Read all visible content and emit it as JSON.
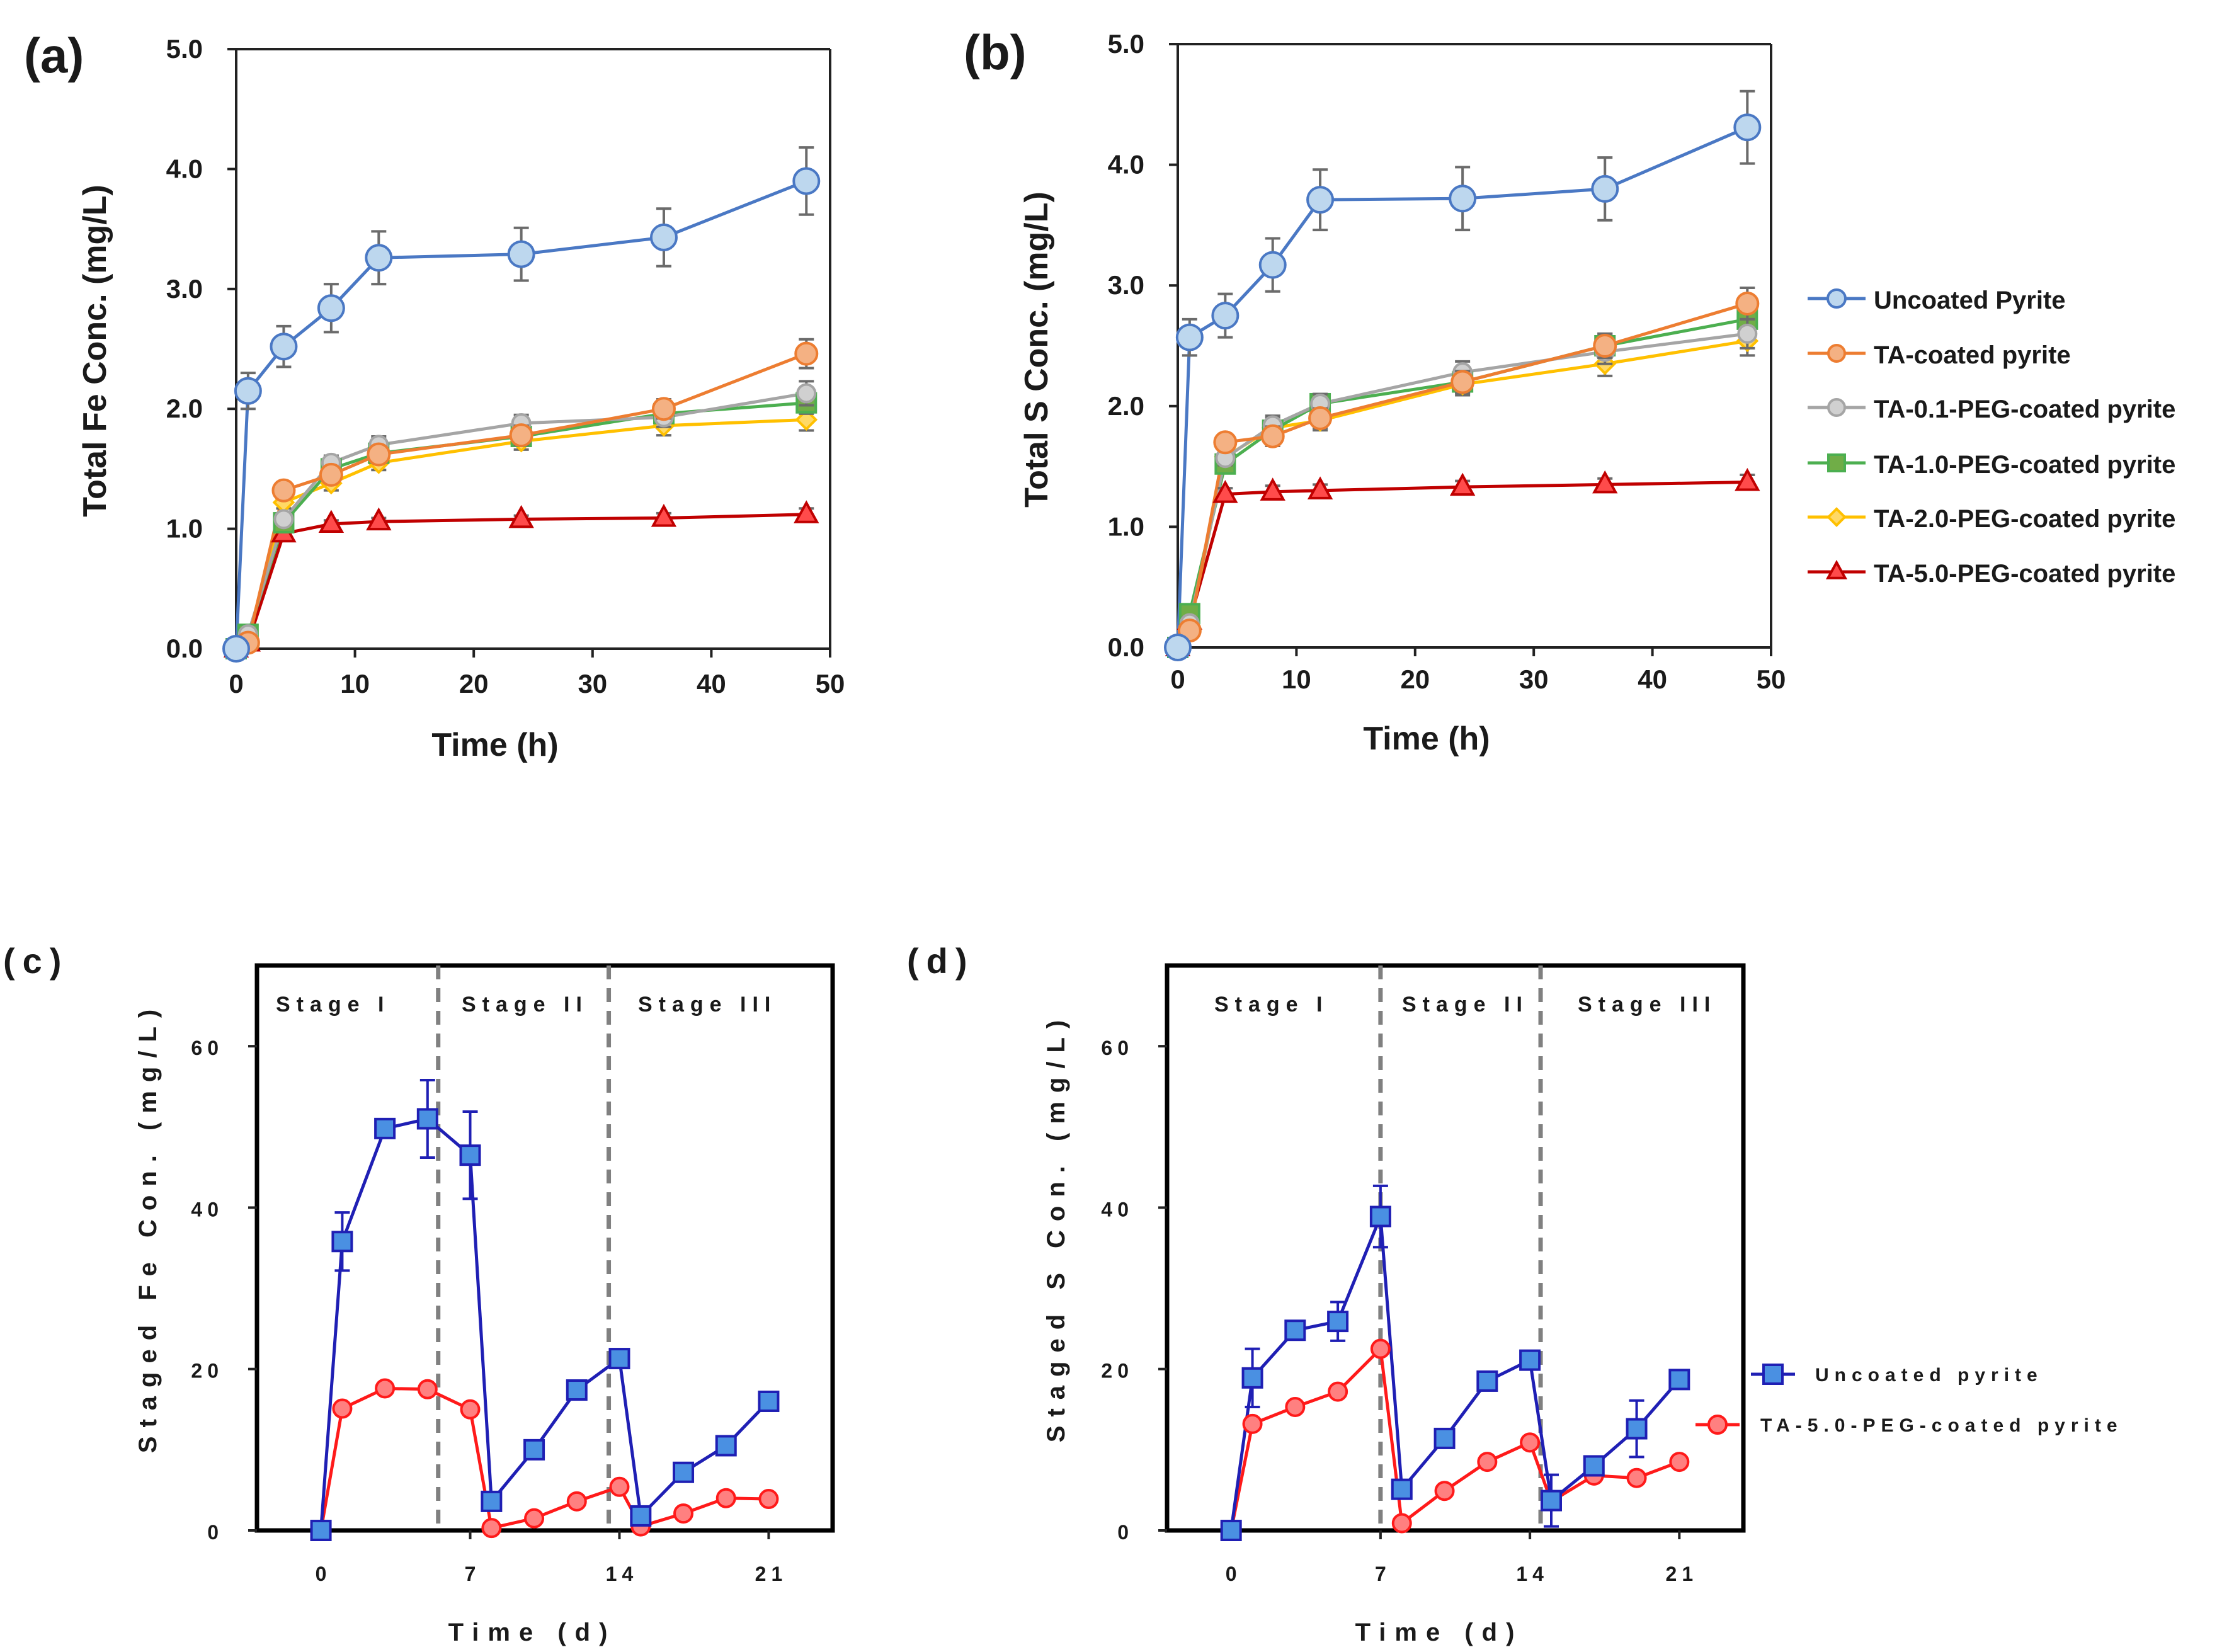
{
  "panels": {
    "a": "(a)",
    "b": "(b)",
    "c": "(c)",
    "d": "(d)"
  },
  "axes": {
    "a": {
      "ylabel": "Total Fe Conc. (mg/L)",
      "xlabel": "Time (h)",
      "yticks": [
        "0.0",
        "1.0",
        "2.0",
        "3.0",
        "4.0",
        "5.0"
      ],
      "xticks": [
        "0",
        "10",
        "20",
        "30",
        "40",
        "50"
      ]
    },
    "b": {
      "ylabel": "Total S Conc. (mg/L)",
      "xlabel": "Time (h)",
      "yticks": [
        "0.0",
        "1.0",
        "2.0",
        "3.0",
        "4.0",
        "5.0"
      ],
      "xticks": [
        "0",
        "10",
        "20",
        "30",
        "40",
        "50"
      ]
    },
    "c": {
      "ylabel": "Staged Fe Con. (mg/L)",
      "xlabel": "Time (d)",
      "yticks": [
        "0",
        "20",
        "40",
        "60"
      ],
      "xticks": [
        "0",
        "7",
        "14",
        "21"
      ]
    },
    "d": {
      "ylabel": "Staged S Con. (mg/L)",
      "xlabel": "Time (d)",
      "yticks": [
        "0",
        "20",
        "40",
        "60"
      ],
      "xticks": [
        "0",
        "7",
        "14",
        "21"
      ]
    }
  },
  "legend_top": [
    "Uncoated Pyrite",
    "TA-coated pyrite",
    "TA-0.1-PEG-coated pyrite",
    "TA-1.0-PEG-coated pyrite",
    "TA-2.0-PEG-coated pyrite",
    "TA-5.0-PEG-coated pyrite"
  ],
  "legend_bottom": [
    "Uncoated pyrite",
    "TA-5.0-PEG-coated pyrite"
  ],
  "stages": [
    "Stage I",
    "Stage II",
    "Stage III"
  ],
  "colors": {
    "uncoated_line": "#4a78c4",
    "uncoated_fill": "#bdd7ee",
    "ta_line": "#ed7d31",
    "ta_fill": "#f4b183",
    "peg01_line": "#a5a5a5",
    "peg01_fill": "#d0d0d0",
    "peg10_line": "#4caf50",
    "peg10_fill": "#70ad47",
    "peg20_line": "#ffc000",
    "peg20_fill": "#ffd966",
    "peg50_line": "#c00000",
    "peg50_fill": "#ff4b4b",
    "blue_line": "#1f1fb4",
    "blue_fill": "#4a90e2",
    "red_line": "#ff1a1a",
    "red_fill": "#ff8080",
    "divider": "#808080"
  },
  "chart_data": [
    {
      "panel": "a",
      "type": "line",
      "xlabel": "Time (h)",
      "ylabel": "Total Fe Conc. (mg/L)",
      "xlim": [
        0,
        50
      ],
      "ylim": [
        0,
        5
      ],
      "x": [
        0,
        1,
        4,
        8,
        12,
        24,
        36,
        48
      ],
      "series": [
        {
          "name": "Uncoated Pyrite",
          "marker": "circle",
          "values": [
            0,
            2.15,
            2.52,
            2.84,
            3.26,
            3.29,
            3.43,
            3.9
          ],
          "errors": [
            0,
            0.15,
            0.17,
            0.2,
            0.22,
            0.22,
            0.24,
            0.28
          ]
        },
        {
          "name": "TA-coated pyrite",
          "marker": "circle",
          "values": [
            0,
            0.05,
            1.32,
            1.45,
            1.62,
            1.78,
            2.0,
            2.46
          ],
          "errors": [
            0,
            0,
            0.05,
            0.06,
            0.07,
            0.08,
            0.08,
            0.12
          ]
        },
        {
          "name": "TA-0.1-PEG-coated pyrite",
          "marker": "circle",
          "values": [
            0,
            0.12,
            1.08,
            1.55,
            1.7,
            1.88,
            1.93,
            2.13
          ],
          "errors": [
            0,
            0,
            0.05,
            0.06,
            0.07,
            0.07,
            0.08,
            0.1
          ]
        },
        {
          "name": "TA-1.0-PEG-coated pyrite",
          "marker": "square",
          "values": [
            0,
            0.12,
            1.05,
            1.5,
            1.63,
            1.77,
            1.96,
            2.05
          ],
          "errors": [
            0,
            0,
            0.05,
            0.06,
            0.06,
            0.07,
            0.08,
            0.09
          ]
        },
        {
          "name": "TA-2.0-PEG-coated pyrite",
          "marker": "diamond",
          "values": [
            0,
            0.08,
            1.22,
            1.38,
            1.55,
            1.73,
            1.86,
            1.91
          ],
          "errors": [
            0,
            0,
            0.05,
            0.06,
            0.06,
            0.07,
            0.08,
            0.09
          ]
        },
        {
          "name": "TA-5.0-PEG-coated pyrite",
          "marker": "triangle",
          "values": [
            0,
            0.05,
            0.96,
            1.04,
            1.06,
            1.08,
            1.09,
            1.12
          ],
          "errors": [
            0,
            0,
            0.03,
            0.03,
            0.03,
            0.03,
            0.04,
            0.05
          ]
        }
      ]
    },
    {
      "panel": "b",
      "type": "line",
      "xlabel": "Time (h)",
      "ylabel": "Total S Conc. (mg/L)",
      "xlim": [
        0,
        50
      ],
      "ylim": [
        0,
        5
      ],
      "x": [
        0,
        1,
        4,
        8,
        12,
        24,
        36,
        48
      ],
      "series": [
        {
          "name": "Uncoated Pyrite",
          "marker": "circle",
          "values": [
            0,
            2.57,
            2.75,
            3.17,
            3.71,
            3.72,
            3.8,
            4.31
          ],
          "errors": [
            0,
            0.15,
            0.18,
            0.22,
            0.25,
            0.26,
            0.26,
            0.3
          ]
        },
        {
          "name": "TA-coated pyrite",
          "marker": "circle",
          "values": [
            0,
            0.14,
            1.7,
            1.75,
            1.9,
            2.2,
            2.5,
            2.85
          ],
          "errors": [
            0,
            0.05,
            0.06,
            0.08,
            0.08,
            0.09,
            0.1,
            0.13
          ]
        },
        {
          "name": "TA-0.1-PEG-coated pyrite",
          "marker": "circle",
          "values": [
            0,
            0.2,
            1.57,
            1.84,
            2.02,
            2.28,
            2.45,
            2.6
          ],
          "errors": [
            0,
            0.05,
            0.06,
            0.08,
            0.08,
            0.09,
            0.1,
            0.12
          ]
        },
        {
          "name": "TA-1.0-PEG-coated pyrite",
          "marker": "square",
          "values": [
            0,
            0.28,
            1.52,
            1.8,
            2.02,
            2.2,
            2.5,
            2.72
          ],
          "errors": [
            0,
            0.05,
            0.06,
            0.08,
            0.08,
            0.09,
            0.1,
            0.12
          ]
        },
        {
          "name": "TA-2.0-PEG-coated pyrite",
          "marker": "diamond",
          "values": [
            0,
            0.18,
            1.58,
            1.82,
            1.88,
            2.18,
            2.35,
            2.54
          ],
          "errors": [
            0,
            0.05,
            0.06,
            0.08,
            0.08,
            0.09,
            0.1,
            0.12
          ]
        },
        {
          "name": "TA-5.0-PEG-coated pyrite",
          "marker": "triangle",
          "values": [
            0,
            0.22,
            1.27,
            1.29,
            1.3,
            1.33,
            1.35,
            1.37
          ],
          "errors": [
            0,
            0.05,
            0.05,
            0.05,
            0.05,
            0.05,
            0.05,
            0.06
          ]
        }
      ]
    },
    {
      "panel": "c",
      "type": "line",
      "xlabel": "Time (d)",
      "ylabel": "Staged Fe Con. (mg/L)",
      "xlim": [
        -3,
        24
      ],
      "ylim": [
        0,
        70
      ],
      "stage_boundaries": [
        5.5,
        13.5
      ],
      "series": [
        {
          "name": "Uncoated pyrite",
          "marker": "square",
          "x": [
            0,
            1,
            3,
            5,
            7,
            8,
            10,
            12,
            14,
            15,
            17,
            19,
            21
          ],
          "values": [
            0,
            35.8,
            49.8,
            51,
            46.5,
            3.6,
            10,
            17.4,
            21.3,
            1.8,
            7.2,
            10.5,
            16
          ],
          "errors": [
            0,
            3.6,
            0,
            4.8,
            5.4,
            0,
            0,
            0,
            0,
            0,
            0,
            0.8,
            0
          ]
        },
        {
          "name": "TA-5.0-PEG-coated pyrite",
          "marker": "circle",
          "x": [
            0,
            1,
            3,
            5,
            7,
            8,
            10,
            12,
            14,
            15,
            17,
            19,
            21
          ],
          "values": [
            0,
            15.1,
            17.6,
            17.5,
            15,
            0.3,
            1.5,
            3.6,
            5.4,
            0.5,
            2.1,
            4,
            3.9
          ],
          "errors": [
            0,
            0,
            0,
            0,
            0,
            0,
            0,
            0,
            0,
            0,
            0,
            0,
            0
          ]
        }
      ]
    },
    {
      "panel": "d",
      "type": "line",
      "xlabel": "Time (d)",
      "ylabel": "Staged S Con. (mg/L)",
      "xlim": [
        -3,
        24
      ],
      "ylim": [
        0,
        70
      ],
      "stage_boundaries": [
        7,
        14.5
      ],
      "series": [
        {
          "name": "Uncoated pyrite",
          "marker": "square",
          "x": [
            0,
            1,
            3,
            5,
            7,
            8,
            10,
            12,
            14,
            15,
            17,
            19,
            21
          ],
          "values": [
            0,
            18.9,
            24.8,
            25.9,
            38.9,
            5.1,
            11.4,
            18.5,
            21.1,
            3.7,
            8,
            12.6,
            18.7
          ],
          "errors": [
            0,
            3.6,
            0,
            2.4,
            3.8,
            0,
            0,
            0,
            0,
            3.2,
            0,
            3.5,
            0
          ]
        },
        {
          "name": "TA-5.0-PEG-coated pyrite",
          "marker": "circle",
          "x": [
            0,
            1,
            3,
            5,
            7,
            8,
            10,
            12,
            14,
            15,
            17,
            19,
            21
          ],
          "values": [
            0,
            13.2,
            15.3,
            17.2,
            22.5,
            0.9,
            4.9,
            8.5,
            10.9,
            3.6,
            6.8,
            6.5,
            8.5
          ],
          "errors": [
            0,
            0,
            0,
            0,
            0,
            0,
            0,
            0,
            0,
            0,
            0,
            0,
            0
          ]
        }
      ]
    }
  ]
}
